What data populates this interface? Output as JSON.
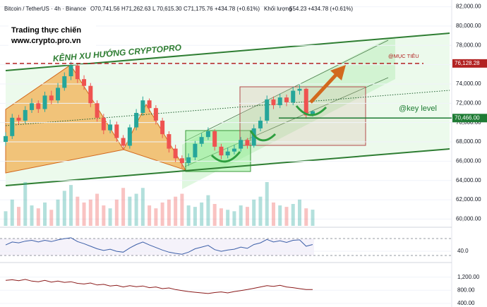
{
  "chart_data": {
    "type": "candlestick",
    "header": {
      "symbol": "Bitcoin / TetherUS · 4h · Binance",
      "ohlc": [
        {
          "key": "O",
          "value": "70,741.56"
        },
        {
          "key": "H",
          "value": "71,262.63"
        },
        {
          "key": "L",
          "value": "70,615.30"
        },
        {
          "key": "C",
          "value": "71,175.76"
        }
      ],
      "change": "+434.78 (+0.61%)",
      "volume_label": "Khối lượng",
      "volume_value": "554.23",
      "volume_change": "+434.78 (+0.61%)"
    },
    "watermark": [
      "Trading thực chiến",
      "www.crypto.pro.vn"
    ],
    "channel_title": "KÊNH XU HƯỚNG CRYPTOPRO",
    "levels": [
      {
        "name": "@MỤC TIÊU",
        "value": 76128.28,
        "label": "76,128.28",
        "color": "#b22222"
      },
      {
        "name": "@key level",
        "value": 70466,
        "label": "70,466.00",
        "color": "#1e7b34"
      }
    ],
    "up_color": "#26a69a",
    "down_color": "#ef5350",
    "open": [
      68000,
      68600,
      70500,
      70200,
      71300,
      72000,
      71400,
      72800,
      72300,
      73600,
      74800,
      75900,
      74500,
      73800,
      72000,
      70500,
      69200,
      69800,
      68400,
      67600,
      69500,
      71000,
      72300,
      71500,
      70200,
      68800,
      67300,
      66300,
      65800,
      66400,
      67800,
      68500,
      69100,
      67500,
      66600,
      67000,
      67300,
      68200,
      67600,
      69400,
      70200,
      72400,
      71800,
      72600,
      72100,
      73300,
      73500,
      70741.56
    ],
    "high": [
      69000,
      70900,
      70800,
      71700,
      72500,
      72300,
      73200,
      73300,
      74100,
      75200,
      76300,
      76100,
      74900,
      74100,
      72300,
      70900,
      70300,
      70100,
      68700,
      69800,
      71400,
      72700,
      72500,
      71800,
      70500,
      69100,
      67700,
      66600,
      66800,
      68100,
      68900,
      69500,
      69300,
      67800,
      67400,
      67700,
      68500,
      68400,
      69800,
      70600,
      72800,
      72700,
      73000,
      72900,
      73700,
      73900,
      73600,
      71262.63
    ],
    "low": [
      67600,
      68300,
      69800,
      69900,
      71000,
      71000,
      71100,
      71900,
      72000,
      73300,
      74400,
      74100,
      73400,
      71600,
      70100,
      68800,
      68900,
      68000,
      67200,
      67300,
      69200,
      70700,
      71100,
      69800,
      68400,
      66900,
      65900,
      65300,
      65500,
      66100,
      67500,
      68200,
      67100,
      66200,
      66300,
      66700,
      67000,
      67300,
      67400,
      69100,
      69900,
      71400,
      71500,
      71700,
      71800,
      72900,
      70400,
      70615.3
    ],
    "close": [
      68600,
      70500,
      70200,
      71300,
      72000,
      71400,
      72800,
      72300,
      73600,
      74800,
      75900,
      74500,
      73800,
      72000,
      70500,
      69200,
      69800,
      68400,
      67600,
      69500,
      71000,
      72300,
      71500,
      70200,
      68800,
      67300,
      66300,
      65800,
      66400,
      67800,
      68500,
      69100,
      67500,
      66600,
      67000,
      67300,
      68200,
      67600,
      69400,
      70200,
      72400,
      71800,
      72600,
      72100,
      73300,
      73500,
      70741,
      71175.76
    ],
    "volume": [
      500,
      900,
      650,
      1500,
      700,
      600,
      800,
      550,
      900,
      1200,
      1400,
      1000,
      800,
      900,
      1100,
      700,
      600,
      900,
      1300,
      1000,
      1100,
      1300,
      700,
      600,
      800,
      900,
      1000,
      1100,
      700,
      650,
      800,
      1050,
      750,
      600,
      550,
      500,
      700,
      650,
      900,
      1000,
      1500,
      800,
      700,
      650,
      750,
      900,
      600,
      554.23
    ],
    "ylim": [
      59300,
      82700
    ],
    "yticks": [
      {
        "value": 82000,
        "label": "82,000.00"
      },
      {
        "value": 80000,
        "label": "80,000.00"
      },
      {
        "value": 78000,
        "label": "78,000.00"
      },
      {
        "value": 76000,
        "label": "76,000.00"
      },
      {
        "value": 74000,
        "label": "74,000.00"
      },
      {
        "value": 72000,
        "label": "72,000.00"
      },
      {
        "value": 70000,
        "label": "70,000.00"
      },
      {
        "value": 68000,
        "label": "68,000.00"
      },
      {
        "value": 66000,
        "label": "66,000.00"
      },
      {
        "value": 64000,
        "label": "64,000.00"
      },
      {
        "value": 62000,
        "label": "62,000.00"
      },
      {
        "value": 60000,
        "label": "60,000.00"
      }
    ],
    "rsi": {
      "color": "#3c5fa8",
      "values": [
        55,
        62,
        60,
        64,
        66,
        62,
        66,
        63,
        67,
        70,
        72,
        63,
        58,
        52,
        46,
        42,
        45,
        40,
        38,
        48,
        56,
        62,
        55,
        49,
        43,
        38,
        35,
        33,
        38,
        46,
        50,
        54,
        44,
        40,
        43,
        45,
        50,
        47,
        56,
        60,
        68,
        62,
        65,
        61,
        66,
        67,
        52,
        56
      ],
      "ylim": [
        20,
        92
      ],
      "yticks": [
        {
          "value": 40,
          "label": "40.0"
        }
      ]
    },
    "oscillator": {
      "color": "#8b1a1a",
      "values": [
        1100,
        1120,
        1090,
        1130,
        1080,
        1060,
        1100,
        1050,
        1080,
        1040,
        1060,
        1010,
        990,
        1020,
        960,
        980,
        930,
        950,
        900,
        940,
        910,
        930,
        880,
        900,
        850,
        870,
        820,
        790,
        760,
        740,
        720,
        700,
        730,
        750,
        720,
        760,
        790,
        820,
        860,
        900,
        940,
        920,
        950,
        900,
        880,
        850,
        820,
        820
      ],
      "ylim": [
        290,
        1580
      ],
      "yticks": [
        {
          "value": 1200,
          "label": "1,200.00"
        },
        {
          "value": 800,
          "label": "800.00"
        },
        {
          "value": 400,
          "label": "400.00"
        }
      ]
    }
  }
}
